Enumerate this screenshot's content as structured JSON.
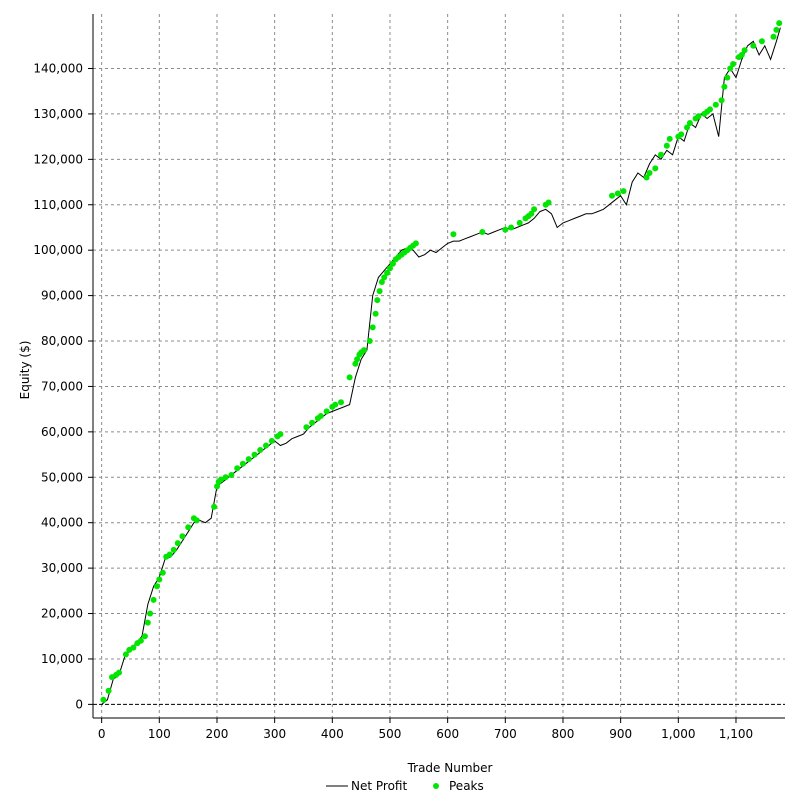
{
  "chart_data": {
    "type": "line",
    "title": "",
    "xlabel": "Trade Number",
    "ylabel": "Equity ($)",
    "xlim": [
      -15,
      1185
    ],
    "ylim": [
      -3000,
      152000
    ],
    "x_ticks": [
      0,
      100,
      200,
      300,
      400,
      500,
      600,
      700,
      800,
      900,
      1000,
      1100
    ],
    "x_tick_labels": [
      "0",
      "100",
      "200",
      "300",
      "400",
      "500",
      "600",
      "700",
      "800",
      "900",
      "1,000",
      "1,100"
    ],
    "y_ticks": [
      0,
      10000,
      20000,
      30000,
      40000,
      50000,
      60000,
      70000,
      80000,
      90000,
      100000,
      110000,
      120000,
      130000,
      140000
    ],
    "y_tick_labels": [
      "0",
      "10,000",
      "20,000",
      "30,000",
      "40,000",
      "50,000",
      "60,000",
      "70,000",
      "80,000",
      "90,000",
      "100,000",
      "110,000",
      "120,000",
      "130,000",
      "140,000"
    ],
    "grid": true,
    "legend_position": "bottom-center",
    "series": [
      {
        "name": "Net Profit",
        "color": "#000000",
        "style": "line",
        "x": [
          0,
          10,
          20,
          30,
          40,
          50,
          60,
          70,
          80,
          90,
          100,
          110,
          120,
          130,
          140,
          150,
          160,
          170,
          180,
          190,
          200,
          210,
          220,
          230,
          240,
          250,
          260,
          270,
          280,
          290,
          300,
          310,
          320,
          330,
          340,
          350,
          360,
          370,
          380,
          390,
          400,
          410,
          420,
          430,
          440,
          450,
          460,
          470,
          480,
          490,
          500,
          510,
          520,
          530,
          540,
          550,
          560,
          570,
          580,
          590,
          600,
          610,
          620,
          630,
          640,
          650,
          660,
          670,
          680,
          690,
          700,
          710,
          720,
          730,
          740,
          750,
          760,
          770,
          780,
          790,
          800,
          810,
          820,
          830,
          840,
          850,
          860,
          870,
          880,
          890,
          900,
          910,
          920,
          930,
          940,
          950,
          960,
          970,
          980,
          990,
          1000,
          1010,
          1020,
          1030,
          1040,
          1050,
          1060,
          1070,
          1080,
          1090,
          1100,
          1110,
          1120,
          1130,
          1140,
          1150,
          1160,
          1170,
          1177
        ],
        "y": [
          0,
          1000,
          5500,
          6500,
          10500,
          12000,
          13500,
          15000,
          22000,
          26000,
          28000,
          32000,
          32500,
          34000,
          36000,
          38000,
          40000,
          40500,
          40000,
          41000,
          48000,
          49000,
          50000,
          51000,
          52000,
          53000,
          54000,
          55000,
          56000,
          57000,
          58000,
          57000,
          57500,
          58500,
          59000,
          59500,
          61000,
          62000,
          63000,
          64000,
          64500,
          65000,
          65500,
          66000,
          72000,
          76000,
          78000,
          90000,
          94000,
          95500,
          97000,
          98500,
          100000,
          100500,
          100000,
          98500,
          99000,
          100000,
          99500,
          100500,
          101500,
          102000,
          102000,
          102500,
          103000,
          103500,
          104000,
          103500,
          104000,
          104500,
          105000,
          104500,
          105000,
          105500,
          106000,
          107000,
          108500,
          109000,
          108000,
          105000,
          106000,
          106500,
          107000,
          107500,
          108000,
          108000,
          108500,
          109000,
          110000,
          111000,
          112000,
          110000,
          115000,
          117000,
          116000,
          119000,
          121000,
          120000,
          122000,
          121000,
          125000,
          124000,
          128000,
          127000,
          130000,
          129000,
          130000,
          125000,
          138000,
          140000,
          138000,
          142000,
          145000,
          146000,
          143000,
          145000,
          142000,
          146000,
          149000
        ],
        "notes": ""
      },
      {
        "name": "Peaks",
        "color": "#00e600",
        "style": "markers",
        "x": [
          3,
          12,
          18,
          25,
          30,
          42,
          48,
          55,
          62,
          68,
          75,
          80,
          84,
          90,
          96,
          100,
          106,
          112,
          118,
          125,
          132,
          140,
          150,
          160,
          165,
          195,
          200,
          203,
          207,
          215,
          225,
          235,
          245,
          255,
          265,
          275,
          285,
          295,
          305,
          310,
          355,
          365,
          375,
          380,
          390,
          400,
          405,
          415,
          430,
          440,
          443,
          447,
          450,
          455,
          465,
          470,
          475,
          478,
          482,
          486,
          490,
          495,
          500,
          505,
          510,
          515,
          520,
          525,
          530,
          535,
          540,
          545,
          610,
          660,
          700,
          710,
          725,
          735,
          740,
          745,
          750,
          770,
          775,
          885,
          895,
          905,
          945,
          950,
          960,
          970,
          980,
          985,
          1000,
          1005,
          1015,
          1020,
          1030,
          1035,
          1045,
          1050,
          1055,
          1065,
          1075,
          1080,
          1085,
          1090,
          1095,
          1105,
          1110,
          1115,
          1130,
          1145,
          1165,
          1170,
          1175
        ],
        "y": [
          1000,
          3000,
          6000,
          6500,
          7000,
          11000,
          12000,
          12500,
          13500,
          14000,
          15000,
          18000,
          20000,
          23000,
          26000,
          27500,
          29000,
          32500,
          33000,
          34000,
          35500,
          37000,
          39000,
          41000,
          40500,
          43500,
          48000,
          49000,
          49500,
          50000,
          50500,
          52000,
          53000,
          54000,
          55000,
          56000,
          57000,
          58000,
          59000,
          59500,
          61000,
          62000,
          63000,
          63500,
          64500,
          65500,
          66000,
          66500,
          72000,
          75000,
          76000,
          77000,
          77500,
          78000,
          80000,
          83000,
          86000,
          89000,
          91000,
          93000,
          94000,
          95000,
          96000,
          97000,
          98000,
          98500,
          99000,
          99500,
          100000,
          100500,
          101000,
          101500,
          103500,
          104000,
          104500,
          105000,
          106000,
          107000,
          107500,
          108000,
          109000,
          110000,
          110500,
          112000,
          112500,
          113000,
          116000,
          117000,
          118000,
          121000,
          123000,
          124500,
          125000,
          125500,
          127000,
          128000,
          129000,
          129500,
          130000,
          130500,
          131000,
          132000,
          133000,
          136000,
          138000,
          140000,
          141000,
          142500,
          143000,
          144000,
          145000,
          146000,
          147000,
          148500,
          150000
        ]
      }
    ]
  }
}
